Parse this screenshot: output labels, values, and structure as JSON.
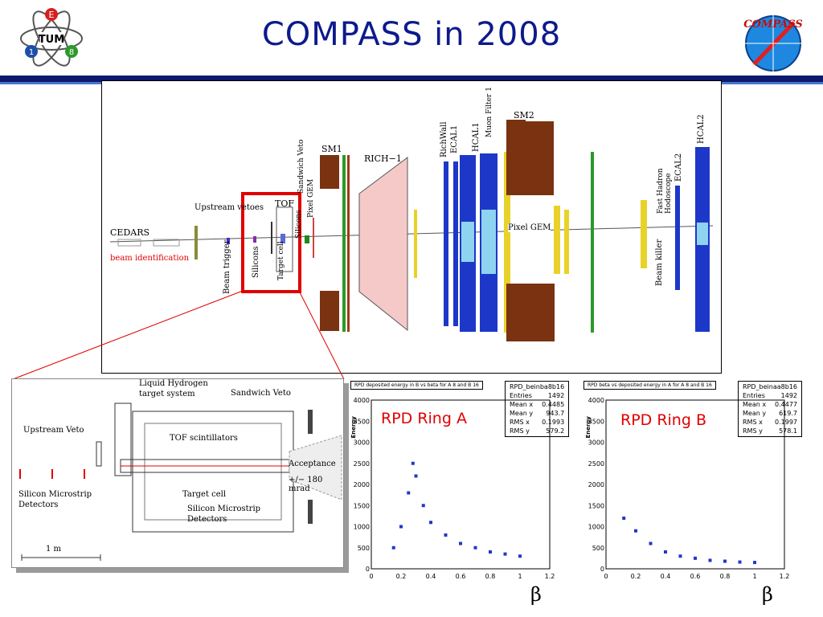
{
  "slide": {
    "title": "COMPASS in 2008",
    "logo_left": {
      "letters": [
        "E",
        "TUM",
        "1",
        "8"
      ]
    },
    "logo_right": {
      "text": "COMPASS"
    }
  },
  "spectrometer": {
    "labels": {
      "cedars": "CEDARS",
      "beam_id": "beam identification",
      "upstream_vetoes": "Upstream vetoes",
      "beam_trigger": "Beam trigger",
      "silicons1": "Silicons",
      "tof": "TOF",
      "target_cell": "Target cell",
      "silicons2": "Silicons",
      "pixel_gem1": "Pixel GEM",
      "sandwich_veto": "Sandwich Veto",
      "sm1": "SM1",
      "rich1": "RICH−1",
      "richwall": "RichWall",
      "ecal1": "ECAL1",
      "hcal1": "HCAL1",
      "muon_filter": "Muon Filter 1",
      "sm2": "SM2",
      "pixel_gem2": "Pixel GEM",
      "fast_hadron": "Fast Hadron Hodoscope",
      "ecal2": "ECAL2",
      "hcal2": "HCAL2",
      "beam_killer": "Beam killer"
    }
  },
  "target_area": {
    "labels": {
      "liquid_h": "Liquid Hydrogen",
      "target_system": "target system",
      "sandwich_veto": "Sandwich Veto",
      "upstream_veto": "Upstream Veto",
      "tof_scint": "TOF scintillators",
      "acceptance": "Acceptance",
      "mrad": "+/− 180 mrad",
      "silicon_det_left_1": "Silicon Microstrip",
      "silicon_det_left_2": "Detectors",
      "target_cell": "Target cell",
      "silicon_det_1": "Silicon Microstrip",
      "silicon_det_2": "Detectors",
      "scale": "1 m"
    }
  },
  "plots": [
    {
      "title": "RPD deposited energy in B vs beta for A 8 and B 16",
      "hist_name": "RPD_beinba8b16",
      "stats": [
        [
          "Entries",
          "1492"
        ],
        [
          "Mean x",
          "0.4485"
        ],
        [
          "Mean y",
          "943.7"
        ],
        [
          "RMS x",
          "0.1993"
        ],
        [
          "RMS y",
          "579.2"
        ]
      ],
      "label": "RPD Ring A",
      "ylabel": "Energy",
      "xlabel": "β",
      "yticks": [
        "0",
        "500",
        "1000",
        "1500",
        "2000",
        "2500",
        "3000",
        "3500",
        "4000"
      ],
      "xticks": [
        "0",
        "0.2",
        "0.4",
        "0.6",
        "0.8",
        "1",
        "1.2"
      ]
    },
    {
      "title": "RPD beta vs deposited energy in A for A 8 and B 16",
      "hist_name": "RPD_beinaa8b16",
      "stats": [
        [
          "Entries",
          "1492"
        ],
        [
          "Mean x",
          "0.4477"
        ],
        [
          "Mean y",
          "619.7"
        ],
        [
          "RMS x",
          "0.1997"
        ],
        [
          "RMS y",
          "578.1"
        ]
      ],
      "label": "RPD Ring B",
      "ylabel": "Energy",
      "xlabel": "β",
      "yticks": [
        "0",
        "500",
        "1000",
        "1500",
        "2000",
        "2500",
        "3000",
        "3500",
        "4000"
      ],
      "xticks": [
        "0",
        "0.2",
        "0.4",
        "0.6",
        "0.8",
        "1",
        "1.2"
      ]
    }
  ],
  "chart_data": [
    {
      "type": "scatter",
      "title": "RPD deposited energy in B vs beta for A 8 and B 16",
      "xlabel": "β",
      "ylabel": "Energy",
      "xlim": [
        0,
        1.2
      ],
      "ylim": [
        0,
        4000
      ],
      "series": [
        {
          "name": "RPD Ring A",
          "points": [
            [
              0.15,
              500
            ],
            [
              0.2,
              1000
            ],
            [
              0.25,
              1800
            ],
            [
              0.28,
              2500
            ],
            [
              0.3,
              2200
            ],
            [
              0.35,
              1500
            ],
            [
              0.4,
              1100
            ],
            [
              0.5,
              800
            ],
            [
              0.6,
              600
            ],
            [
              0.7,
              500
            ],
            [
              0.8,
              400
            ],
            [
              0.9,
              350
            ],
            [
              1.0,
              300
            ]
          ]
        }
      ]
    },
    {
      "type": "scatter",
      "title": "RPD beta vs deposited energy in A for A 8 and B 16",
      "xlabel": "β",
      "ylabel": "Energy",
      "xlim": [
        0,
        1.2
      ],
      "ylim": [
        0,
        4000
      ],
      "series": [
        {
          "name": "RPD Ring B",
          "points": [
            [
              0.12,
              1200
            ],
            [
              0.2,
              900
            ],
            [
              0.3,
              600
            ],
            [
              0.4,
              400
            ],
            [
              0.5,
              300
            ],
            [
              0.6,
              250
            ],
            [
              0.7,
              200
            ],
            [
              0.8,
              180
            ],
            [
              0.9,
              160
            ],
            [
              1.0,
              150
            ]
          ]
        }
      ]
    }
  ]
}
